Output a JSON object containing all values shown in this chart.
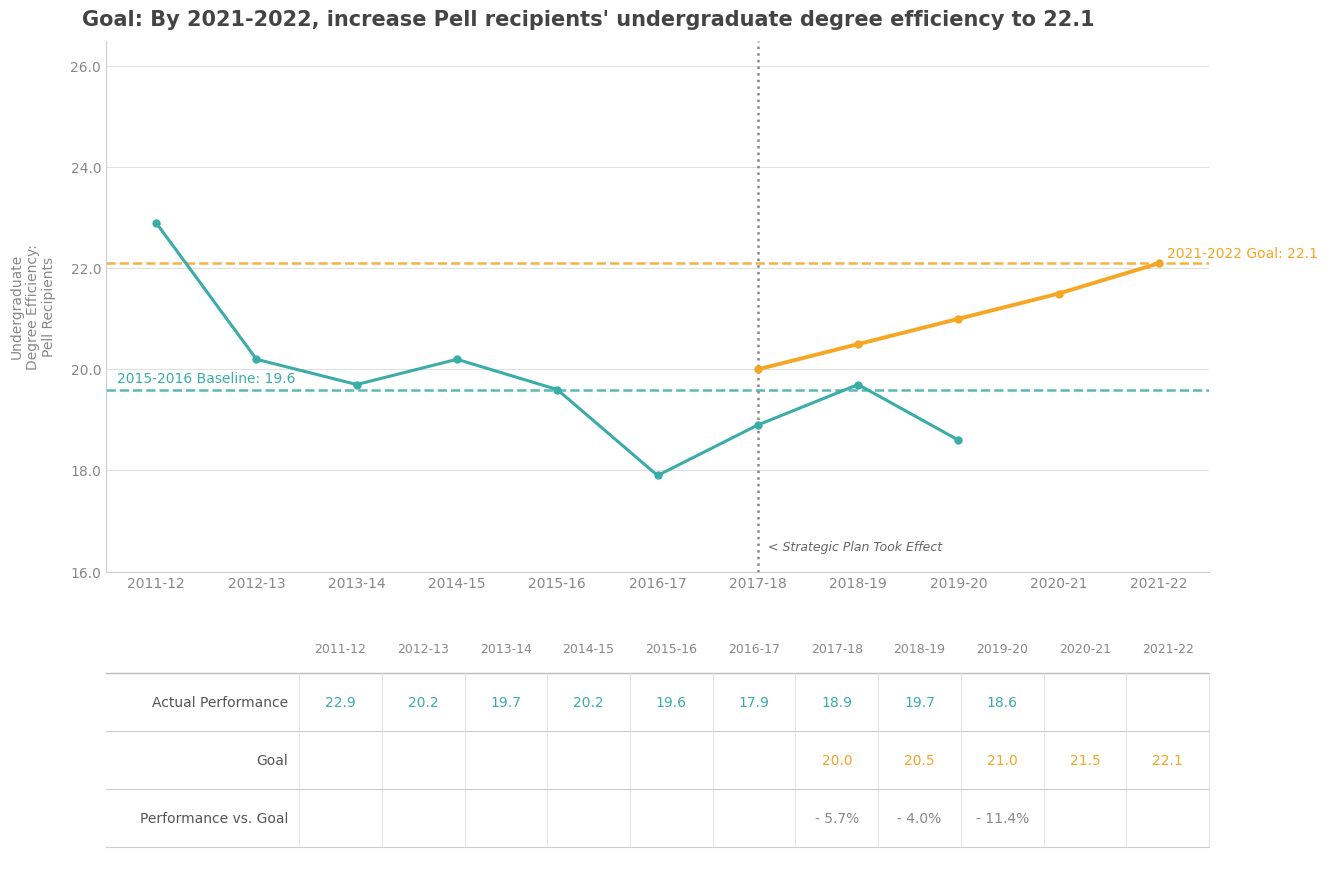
{
  "title": "Goal: By 2021-2022, increase Pell recipients' undergraduate degree efficiency to 22.1",
  "ylabel": "Undergraduate\nDegree Efficiency:\nPell Recipients",
  "ylim": [
    16.0,
    26.5
  ],
  "yticks": [
    16.0,
    18.0,
    20.0,
    22.0,
    24.0,
    26.0
  ],
  "ytick_labels": [
    "16.0",
    "18.0",
    "20.0",
    "22.0",
    "24.0",
    "26.0"
  ],
  "years": [
    "2011-12",
    "2012-13",
    "2013-14",
    "2014-15",
    "2015-16",
    "2016-17",
    "2017-18",
    "2018-19",
    "2019-20",
    "2020-21",
    "2021-22"
  ],
  "actual_values": [
    22.9,
    20.2,
    19.7,
    20.2,
    19.6,
    17.9,
    18.9,
    19.7,
    18.6,
    null,
    null
  ],
  "goal_values": [
    null,
    null,
    null,
    null,
    null,
    null,
    20.0,
    20.5,
    21.0,
    21.5,
    22.1
  ],
  "actual_color": "#3aada8",
  "goal_color": "#f5a623",
  "baseline_value": 19.6,
  "baseline_label": "2015-2016 Baseline: 19.6",
  "baseline_color": "#3aada8",
  "goal_line_value": 22.1,
  "goal_line_label": "2021-2022 Goal: 22.1",
  "goal_line_color": "#f5a623",
  "strategic_plan_year_idx": 6,
  "strategic_plan_label": "< Strategic Plan Took Effect",
  "table_actual": [
    "22.9",
    "20.2",
    "19.7",
    "20.2",
    "19.6",
    "17.9",
    "18.9",
    "19.7",
    "18.6",
    "",
    ""
  ],
  "table_goal": [
    "",
    "",
    "",
    "",
    "",
    "",
    "20.0",
    "20.5",
    "21.0",
    "21.5",
    "22.1"
  ],
  "table_pvg": [
    "",
    "",
    "",
    "",
    "",
    "",
    "- 5.7%",
    "- 4.0%",
    "- 11.4%",
    "",
    ""
  ],
  "background_color": "#ffffff",
  "title_fontsize": 15,
  "axis_fontsize": 10
}
